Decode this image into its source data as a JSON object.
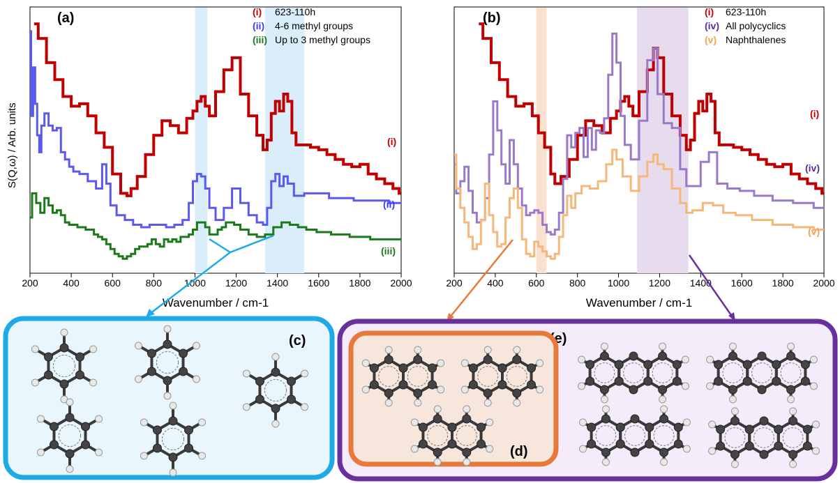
{
  "figure": {
    "panel_a_label": "(a)",
    "panel_b_label": "(b)",
    "panel_c_label": "(c)",
    "panel_d_label": "(d)",
    "panel_e_label": "(e)",
    "ylabel": "S(Q,ω) / Arb. units",
    "colors": {
      "red": "#c00000",
      "blue": "#5a5af0",
      "green": "#1a7a1a",
      "purple": "#9a7ac8",
      "orange": "#f5b77a",
      "cyan_highlight": "#d9eefa",
      "box_cyan": "#1eaae6",
      "box_purple": "#6a2f9e",
      "box_orange": "#e8793a"
    }
  },
  "chart_data": [
    {
      "panel": "(a)",
      "type": "line",
      "xlabel": "Wavenumber / cm-1",
      "ylabel": "S(Q,ω) / Arb. units",
      "xlim": [
        200,
        2000
      ],
      "xticks": [
        "200",
        "400",
        "600",
        "800",
        "1000",
        "1200",
        "1400",
        "1600",
        "1800",
        "2000"
      ],
      "highlight_bands": [
        [
          1000,
          1060
        ],
        [
          1340,
          1530
        ]
      ],
      "legend": [
        {
          "marker": "(i)",
          "text": "623-110h"
        },
        {
          "marker": "(ii)",
          "text": "4-6 methyl groups"
        },
        {
          "marker": "(iii)",
          "text": "Up to 3 methyl groups"
        }
      ],
      "series": [
        {
          "name": "(i)",
          "color": "#c00000",
          "label": "(i)",
          "x": [
            220,
            260,
            300,
            340,
            380,
            420,
            460,
            500,
            540,
            580,
            620,
            660,
            680,
            700,
            740,
            780,
            820,
            860,
            900,
            940,
            980,
            1000,
            1020,
            1040,
            1060,
            1080,
            1120,
            1160,
            1200,
            1240,
            1280,
            1320,
            1340,
            1360,
            1380,
            1400,
            1420,
            1440,
            1460,
            1480,
            1500,
            1540,
            1580,
            1620,
            1660,
            1700,
            1740,
            1780,
            1820,
            1860,
            1900,
            1940,
            1980,
            2000
          ],
          "y": [
            9.8,
            9.2,
            8.2,
            7.5,
            6.8,
            6.4,
            6.5,
            6.0,
            5.3,
            4.7,
            3.6,
            2.8,
            2.7,
            3.0,
            3.5,
            4.4,
            5.2,
            5.8,
            5.6,
            5.3,
            5.9,
            6.2,
            6.6,
            6.8,
            6.4,
            6.0,
            7.0,
            7.9,
            8.4,
            6.9,
            6.0,
            5.2,
            4.6,
            5.0,
            6.1,
            6.6,
            6.2,
            6.9,
            6.6,
            5.3,
            4.8,
            4.8,
            4.7,
            4.6,
            4.4,
            4.2,
            4.0,
            3.9,
            4.0,
            3.6,
            3.4,
            3.2,
            3.0,
            2.8
          ]
        },
        {
          "name": "4-6 methyl groups",
          "color": "#5a5af0",
          "label": "(ii)",
          "x": [
            200,
            210,
            220,
            230,
            240,
            250,
            260,
            280,
            300,
            320,
            340,
            360,
            380,
            400,
            420,
            460,
            500,
            540,
            560,
            580,
            600,
            640,
            680,
            720,
            760,
            800,
            840,
            880,
            920,
            960,
            980,
            1000,
            1020,
            1040,
            1060,
            1080,
            1120,
            1160,
            1200,
            1240,
            1280,
            1320,
            1340,
            1360,
            1380,
            1400,
            1420,
            1440,
            1460,
            1500,
            1560,
            1620,
            1680,
            1740,
            1800,
            1860,
            1920,
            1960,
            2000
          ],
          "y": [
            9.5,
            6.0,
            8.0,
            6.5,
            5.2,
            4.5,
            5.6,
            6.1,
            5.6,
            5.4,
            5.5,
            4.5,
            4.2,
            3.9,
            3.7,
            3.6,
            3.3,
            3.0,
            4.0,
            3.2,
            2.3,
            1.9,
            1.7,
            1.5,
            1.4,
            1.5,
            1.5,
            1.4,
            1.5,
            1.7,
            2.4,
            3.3,
            3.6,
            3.5,
            3.0,
            2.2,
            1.7,
            2.2,
            3.0,
            2.4,
            1.9,
            1.6,
            1.5,
            2.2,
            3.3,
            3.6,
            3.1,
            3.5,
            3.2,
            2.7,
            2.8,
            2.8,
            2.6,
            2.6,
            2.5,
            2.5,
            2.5,
            2.4,
            2.4
          ]
        },
        {
          "name": "Up to 3 methyl groups",
          "color": "#1a7a1a",
          "label": "(iii)",
          "x": [
            200,
            220,
            240,
            260,
            280,
            300,
            320,
            340,
            360,
            380,
            400,
            420,
            440,
            460,
            480,
            500,
            520,
            540,
            560,
            580,
            600,
            620,
            640,
            660,
            680,
            700,
            720,
            740,
            760,
            780,
            800,
            820,
            840,
            860,
            880,
            900,
            920,
            940,
            960,
            980,
            1000,
            1020,
            1040,
            1060,
            1080,
            1100,
            1120,
            1140,
            1160,
            1180,
            1200,
            1240,
            1280,
            1320,
            1360,
            1400,
            1440,
            1480,
            1520,
            1560,
            1620,
            1700,
            1800,
            1900,
            2000
          ],
          "y": [
            1.8,
            2.8,
            2.4,
            2.0,
            2.6,
            2.3,
            2.0,
            2.1,
            1.9,
            1.6,
            1.5,
            1.5,
            1.4,
            1.4,
            1.3,
            1.3,
            1.1,
            1.0,
            0.9,
            0.7,
            0.5,
            0.3,
            0.2,
            0.1,
            0.2,
            0.3,
            0.5,
            0.6,
            0.6,
            0.7,
            0.9,
            0.7,
            0.6,
            0.9,
            0.8,
            0.9,
            0.8,
            1.0,
            1.0,
            1.1,
            1.3,
            1.6,
            1.6,
            1.4,
            1.1,
            1.1,
            1.3,
            1.4,
            1.6,
            1.6,
            1.5,
            1.3,
            1.1,
            1.0,
            1.1,
            1.4,
            1.6,
            1.5,
            1.4,
            1.3,
            1.2,
            1.1,
            1.0,
            0.9,
            0.9
          ]
        }
      ]
    },
    {
      "panel": "(b)",
      "type": "line",
      "xlabel": "Wavenumber / cm-1",
      "xlim": [
        200,
        2000
      ],
      "xticks": [
        "200",
        "400",
        "600",
        "800",
        "1000",
        "1200",
        "1400",
        "1600",
        "1800",
        "2000"
      ],
      "highlight_bands": [
        [
          600,
          650
        ],
        [
          1090,
          1340
        ]
      ],
      "legend": [
        {
          "marker": "(i)",
          "text": "623-110h"
        },
        {
          "marker": "(iv)",
          "text": "All polycyclics"
        },
        {
          "marker": "(v)",
          "text": "Naphthalenes"
        }
      ],
      "series": [
        {
          "name": "(i)",
          "color": "#c00000",
          "label": "(i)",
          "x": [
            320,
            360,
            400,
            440,
            480,
            520,
            560,
            600,
            620,
            660,
            680,
            700,
            740,
            780,
            820,
            860,
            900,
            940,
            980,
            1000,
            1020,
            1040,
            1060,
            1080,
            1120,
            1160,
            1180,
            1200,
            1240,
            1280,
            1320,
            1340,
            1360,
            1380,
            1400,
            1420,
            1440,
            1460,
            1480,
            1500,
            1540,
            1580,
            1620,
            1660,
            1700,
            1740,
            1780,
            1820,
            1860,
            1900,
            1940,
            1980,
            2000
          ],
          "y": [
            9.8,
            9.2,
            8.2,
            7.5,
            6.8,
            6.4,
            6.5,
            6.0,
            5.3,
            4.7,
            3.6,
            3.2,
            3.5,
            4.2,
            5.2,
            5.8,
            5.6,
            5.3,
            5.9,
            6.2,
            6.6,
            6.8,
            6.4,
            6.0,
            7.0,
            7.9,
            8.8,
            8.4,
            6.9,
            6.0,
            5.2,
            4.6,
            5.0,
            6.1,
            6.6,
            6.2,
            6.9,
            6.6,
            5.3,
            4.8,
            4.8,
            4.7,
            4.6,
            4.4,
            4.2,
            4.0,
            3.9,
            4.0,
            3.6,
            3.4,
            3.2,
            3.0,
            2.8
          ]
        },
        {
          "name": "All polycyclics",
          "color": "#9a7ac8",
          "label": "(iv)",
          "x": [
            200,
            220,
            240,
            260,
            280,
            300,
            320,
            340,
            360,
            380,
            400,
            420,
            440,
            460,
            480,
            500,
            520,
            540,
            560,
            580,
            600,
            620,
            640,
            660,
            680,
            700,
            720,
            740,
            760,
            780,
            800,
            820,
            840,
            860,
            880,
            900,
            920,
            940,
            960,
            980,
            1000,
            1020,
            1040,
            1080,
            1120,
            1160,
            1180,
            1200,
            1240,
            1280,
            1320,
            1340,
            1380,
            1420,
            1460,
            1500,
            1560,
            1620,
            1700,
            1800,
            1900,
            2000
          ],
          "y": [
            4.0,
            2.8,
            3.3,
            3.9,
            2.9,
            2.0,
            1.6,
            1.7,
            2.6,
            4.4,
            6.6,
            5.4,
            4.0,
            3.2,
            5.0,
            4.0,
            3.0,
            2.3,
            1.9,
            2.0,
            2.1,
            2.0,
            1.5,
            1.2,
            1.1,
            1.3,
            2.0,
            3.4,
            5.2,
            4.7,
            5.3,
            5.5,
            4.3,
            5.5,
            4.6,
            5.4,
            5.3,
            5.9,
            7.7,
            9.4,
            8.2,
            6.0,
            4.8,
            4.2,
            5.8,
            8.3,
            8.8,
            6.9,
            5.7,
            5.5,
            3.8,
            3.1,
            3.1,
            4.1,
            4.5,
            3.2,
            3.0,
            2.9,
            2.7,
            2.5,
            2.4,
            2.2
          ]
        },
        {
          "name": "Naphthalenes",
          "color": "#f5b77a",
          "label": "(v)",
          "x": [
            200,
            220,
            240,
            260,
            280,
            300,
            320,
            340,
            360,
            380,
            400,
            420,
            440,
            460,
            480,
            500,
            520,
            540,
            560,
            580,
            600,
            620,
            640,
            660,
            680,
            700,
            720,
            740,
            760,
            780,
            800,
            840,
            880,
            920,
            960,
            980,
            1000,
            1040,
            1080,
            1120,
            1160,
            1180,
            1200,
            1240,
            1280,
            1320,
            1340,
            1380,
            1440,
            1480,
            1540,
            1600,
            1700,
            1800,
            1900,
            2000
          ],
          "y": [
            4.4,
            3.0,
            2.2,
            1.6,
            1.0,
            0.5,
            0.7,
            1.7,
            3.2,
            1.9,
            1.2,
            0.6,
            0.7,
            1.8,
            2.6,
            3.0,
            2.2,
            0.9,
            0.3,
            0.2,
            0.8,
            0.6,
            0.4,
            0.2,
            0.1,
            0.3,
            1.0,
            1.9,
            2.7,
            2.2,
            2.8,
            3.1,
            3.0,
            3.3,
            4.0,
            4.6,
            4.2,
            3.5,
            2.9,
            3.5,
            4.1,
            4.4,
            4.0,
            3.8,
            3.0,
            2.4,
            2.0,
            2.1,
            2.4,
            2.3,
            2.0,
            1.9,
            1.7,
            1.5,
            1.4,
            1.3
          ]
        }
      ]
    }
  ],
  "diagram": {
    "box_c_label": "(c)",
    "box_d_label": "(d)",
    "box_e_label": "(e)"
  }
}
